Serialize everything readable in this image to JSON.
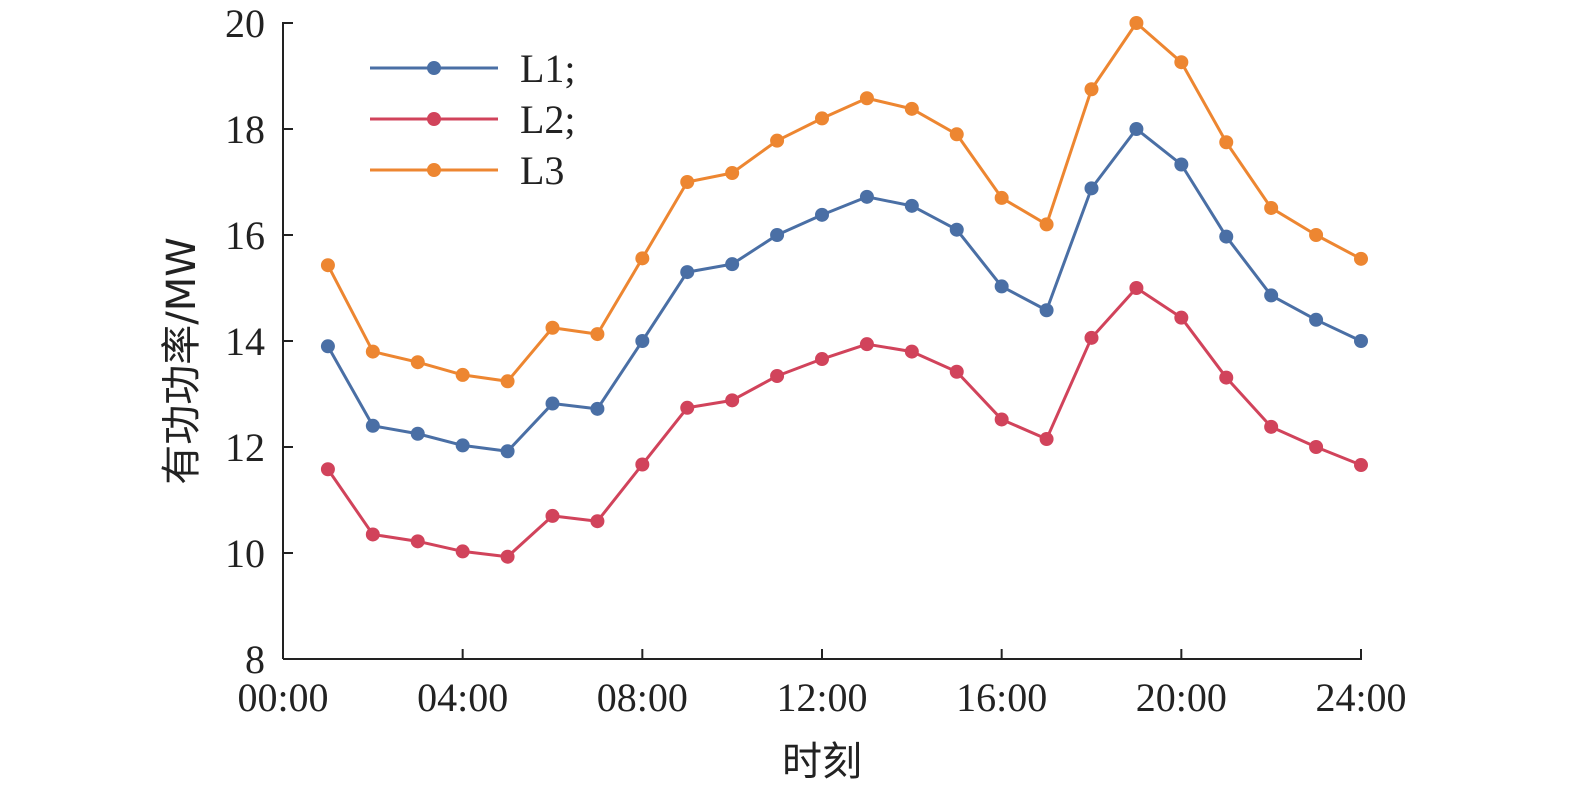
{
  "chart_data": {
    "type": "line",
    "title": "",
    "xlabel": "时刻",
    "ylabel": "有功功率/MW",
    "x_tick_labels": [
      "00:00",
      "04:00",
      "08:00",
      "12:00",
      "16:00",
      "20:00",
      "24:00"
    ],
    "xlim": [
      0,
      24
    ],
    "ylim": [
      8,
      20
    ],
    "y_ticks": [
      8,
      10,
      12,
      14,
      16,
      18,
      20
    ],
    "grid": false,
    "legend_position": "top-left",
    "x": [
      1,
      2,
      3,
      4,
      5,
      6,
      7,
      8,
      9,
      10,
      11,
      12,
      13,
      14,
      15,
      16,
      17,
      18,
      19,
      20,
      21,
      22,
      23,
      24
    ],
    "series": [
      {
        "name": "L1;",
        "color": "#4a6fa5",
        "values": [
          13.9,
          12.4,
          12.25,
          12.03,
          11.92,
          12.82,
          12.72,
          14.0,
          15.3,
          15.45,
          16.0,
          16.38,
          16.72,
          16.55,
          16.1,
          15.03,
          14.58,
          16.88,
          18.0,
          17.33,
          15.97,
          14.86,
          14.4,
          14.0
        ]
      },
      {
        "name": "L2;",
        "color": "#d1435b",
        "values": [
          11.58,
          10.35,
          10.22,
          10.03,
          9.93,
          10.7,
          10.6,
          11.67,
          12.74,
          12.88,
          13.34,
          13.66,
          13.94,
          13.8,
          13.42,
          12.52,
          12.15,
          14.06,
          15.0,
          14.44,
          13.31,
          12.38,
          12.0,
          11.66
        ]
      },
      {
        "name": "L3",
        "color": "#ed8631",
        "values": [
          15.43,
          13.8,
          13.6,
          13.36,
          13.24,
          14.25,
          14.13,
          15.56,
          17.0,
          17.17,
          17.78,
          18.2,
          18.58,
          18.38,
          17.9,
          16.7,
          16.2,
          18.75,
          20.0,
          19.26,
          17.75,
          16.51,
          16.0,
          15.55
        ]
      }
    ]
  }
}
